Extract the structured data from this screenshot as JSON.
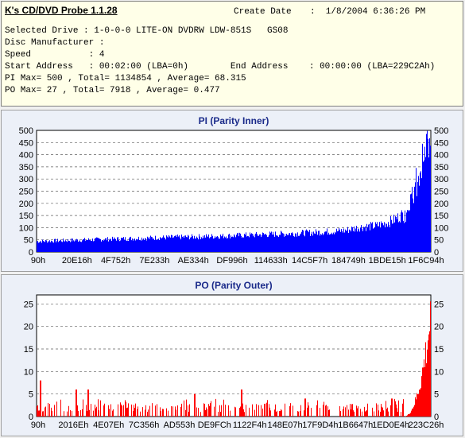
{
  "header": {
    "app_title": "K's CD/DVD Probe 1.1.28",
    "create_date_label": "Create Date",
    "create_date_value": ":  1/8/2004 6:36:26 PM",
    "lines": [
      "Selected Drive : 1-0-0-0 LITE-ON DVDRW LDW-851S   GS08",
      "Disc Manufacturer :",
      "Speed           : 4",
      "Start Address   : 00:02:00 (LBA=0h)        End Address    : 00:00:00 (LBA=229C2Ah)",
      "PI Max= 500 , Total= 1134854 , Average= 68.315",
      "PO Max= 27 , Total= 7918 , Average= 0.477"
    ]
  },
  "chart_data": [
    {
      "type": "bar",
      "title": "PI (Parity Inner)",
      "color": "#0000ff",
      "ylim": [
        0,
        500
      ],
      "yticks": [
        0,
        50,
        100,
        150,
        200,
        250,
        300,
        350,
        400,
        450,
        500
      ],
      "xtick_labels": [
        "90h",
        "20E16h",
        "4F752h",
        "7E233h",
        "AE334h",
        "DF996h",
        "114633h",
        "14C5F7h",
        "184749h",
        "1BDE15h",
        "1F6C94h"
      ],
      "x_range": [
        0,
        1
      ],
      "values_profile": [
        [
          0.0,
          45
        ],
        [
          0.1,
          50
        ],
        [
          0.2,
          55
        ],
        [
          0.3,
          60
        ],
        [
          0.4,
          64
        ],
        [
          0.5,
          69
        ],
        [
          0.6,
          75
        ],
        [
          0.7,
          82
        ],
        [
          0.78,
          90
        ],
        [
          0.82,
          105
        ],
        [
          0.86,
          110
        ],
        [
          0.9,
          130
        ],
        [
          0.93,
          160
        ],
        [
          0.95,
          230
        ],
        [
          0.97,
          320
        ],
        [
          0.985,
          420
        ],
        [
          1.0,
          480
        ]
      ],
      "grid": true
    },
    {
      "type": "bar",
      "title": "PO (Parity Outer)",
      "color": "#ff0000",
      "ylim": [
        0,
        27
      ],
      "yticks": [
        0,
        5,
        10,
        15,
        20,
        25
      ],
      "xtick_labels": [
        "90h",
        "2016Eh",
        "4E07Eh",
        "7C356h",
        "AD553h",
        "DE9FCh",
        "1122F4h",
        "148E07h",
        "17F9D4h",
        "1B6647h",
        "1ED0E4h",
        "223C26h"
      ],
      "x_range": [
        0,
        1
      ],
      "peak_spikes": [
        [
          0.01,
          8
        ],
        [
          0.1,
          6
        ],
        [
          0.13,
          6
        ],
        [
          0.4,
          5
        ],
        [
          0.52,
          6
        ],
        [
          0.68,
          4
        ],
        [
          0.9,
          4
        ],
        [
          1.0,
          27
        ]
      ],
      "grid": true
    }
  ]
}
